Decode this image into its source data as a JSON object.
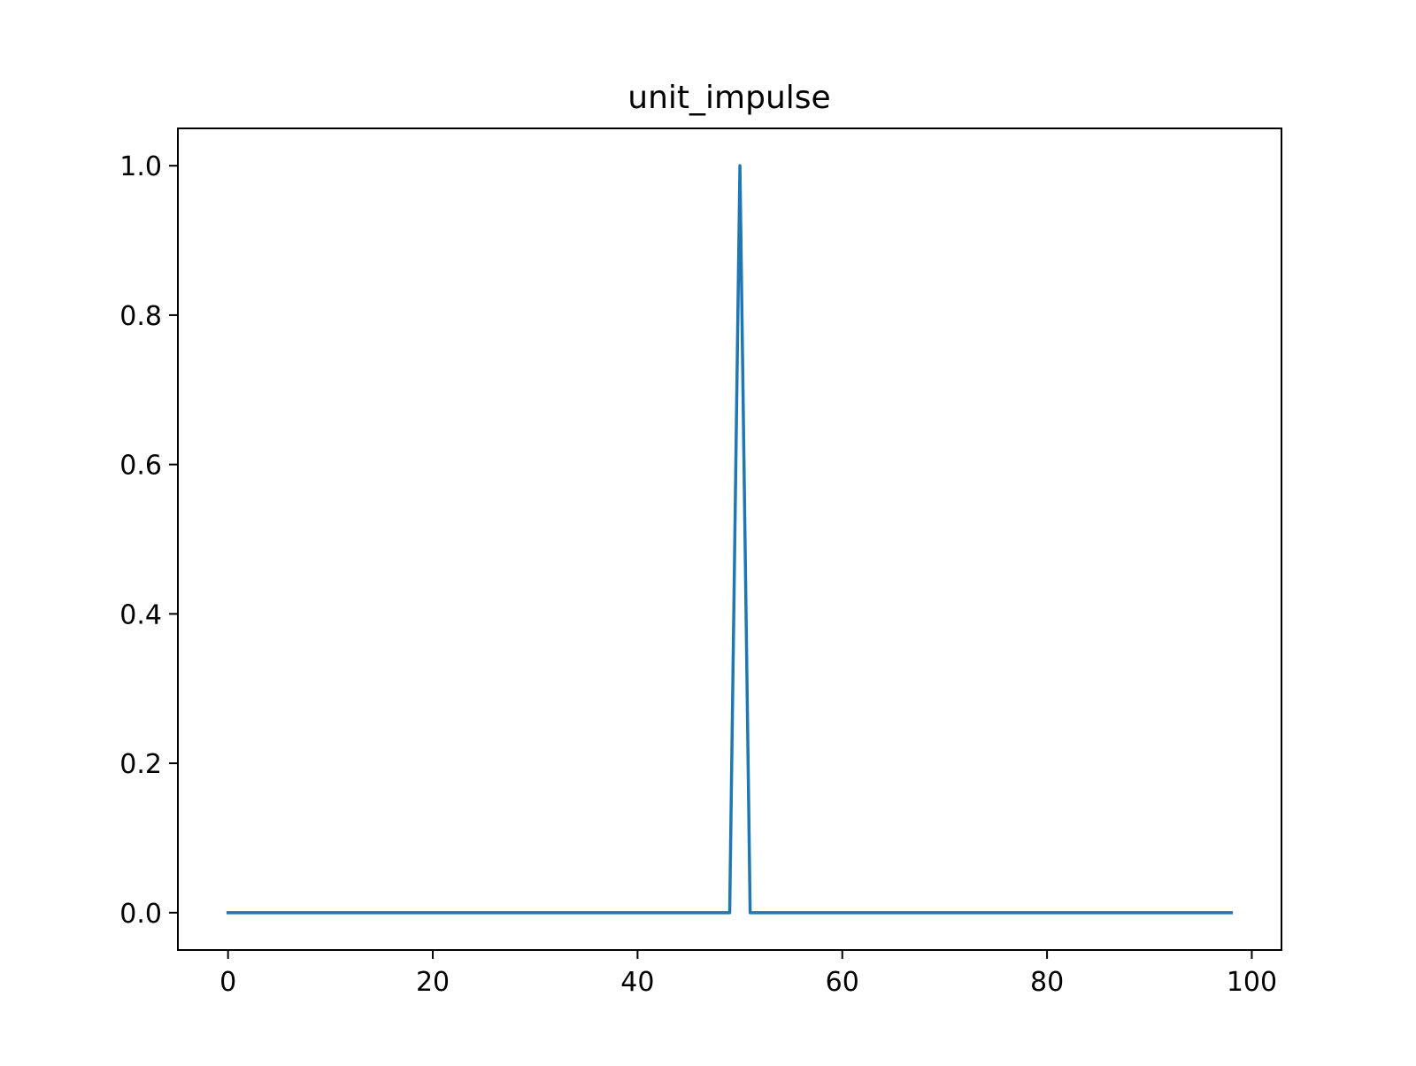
{
  "chart_data": {
    "type": "line",
    "title": "unit_impulse",
    "xlabel": "",
    "ylabel": "",
    "xlim": [
      -4.9,
      102.9
    ],
    "ylim": [
      -0.05,
      1.05
    ],
    "xticks": [
      0,
      20,
      40,
      60,
      80,
      100
    ],
    "xtick_labels": [
      "0",
      "20",
      "40",
      "60",
      "80",
      "100"
    ],
    "yticks": [
      0.0,
      0.2,
      0.4,
      0.6,
      0.8,
      1.0
    ],
    "ytick_labels": [
      "0.0",
      "0.2",
      "0.4",
      "0.6",
      "0.8",
      "1.0"
    ],
    "grid": false,
    "legend": "none",
    "series": [
      {
        "color": "#1f77b4",
        "points": [
          [
            0,
            0
          ],
          [
            49,
            0
          ],
          [
            50,
            1
          ],
          [
            51,
            0
          ],
          [
            98,
            0
          ]
        ]
      }
    ]
  }
}
